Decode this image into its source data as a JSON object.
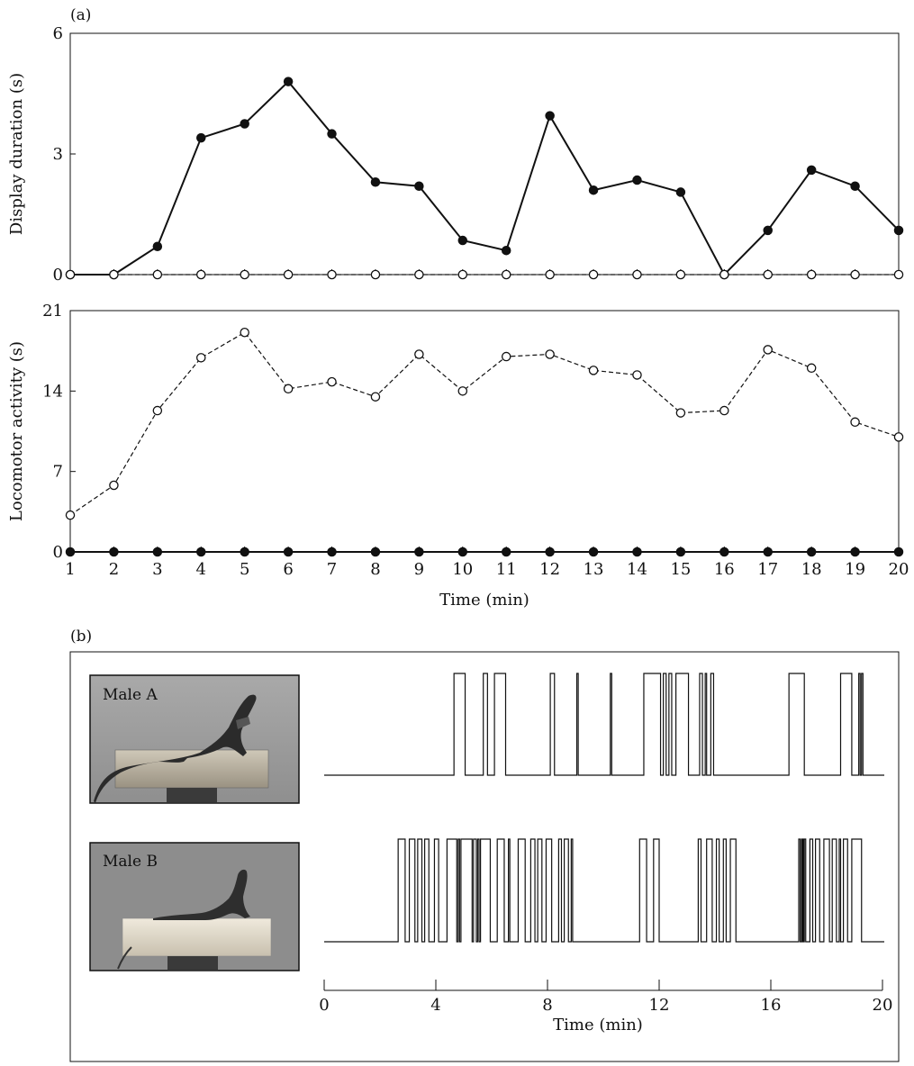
{
  "panel_a_label": "(a)",
  "panel_b_label": "(b)",
  "chart_data": [
    {
      "type": "line",
      "ylabel": "Display duration (s)",
      "xlabel": "",
      "xlim": [
        1,
        20
      ],
      "ylim": [
        0,
        6
      ],
      "yticks": [
        0,
        3,
        6
      ],
      "x": [
        1,
        2,
        3,
        4,
        5,
        6,
        7,
        8,
        9,
        10,
        11,
        12,
        13,
        14,
        15,
        16,
        17,
        18,
        19,
        20
      ],
      "series": [
        {
          "marker": "filled",
          "style": "solid",
          "values": [
            0,
            0,
            0.7,
            3.4,
            3.75,
            4.8,
            3.5,
            2.3,
            2.2,
            0.85,
            0.6,
            3.95,
            2.1,
            2.35,
            2.05,
            0,
            1.1,
            2.6,
            2.2,
            1.1
          ]
        },
        {
          "marker": "open",
          "style": "dashed",
          "values": [
            0,
            0,
            0,
            0,
            0,
            0,
            0,
            0,
            0,
            0,
            0,
            0,
            0,
            0,
            0,
            0,
            0,
            0,
            0,
            0
          ]
        }
      ]
    },
    {
      "type": "line",
      "ylabel": "Locomotor activity (s)",
      "xlabel": "Time (min)",
      "xlim": [
        1,
        20
      ],
      "ylim": [
        0,
        21
      ],
      "yticks": [
        0,
        7,
        14,
        21
      ],
      "xticks": [
        1,
        2,
        3,
        4,
        5,
        6,
        7,
        8,
        9,
        10,
        11,
        12,
        13,
        14,
        15,
        16,
        17,
        18,
        19,
        20
      ],
      "x": [
        1,
        2,
        3,
        4,
        5,
        6,
        7,
        8,
        9,
        10,
        11,
        12,
        13,
        14,
        15,
        16,
        17,
        18,
        19,
        20
      ],
      "series": [
        {
          "marker": "open",
          "style": "dashed",
          "values": [
            3.2,
            5.8,
            12.3,
            16.9,
            19.1,
            14.2,
            14.8,
            13.5,
            17.2,
            14.0,
            17.0,
            17.2,
            15.8,
            15.4,
            12.1,
            12.3,
            17.6,
            16.0,
            11.3,
            10.0
          ]
        },
        {
          "marker": "filled",
          "style": "solid",
          "values": [
            0,
            0,
            0,
            0,
            0,
            0,
            0,
            0,
            0,
            0,
            0,
            0,
            0,
            0,
            0,
            0,
            0,
            0,
            0,
            0
          ]
        }
      ]
    },
    {
      "type": "event-raster",
      "xlabel": "Time (min)",
      "xlim": [
        0,
        20
      ],
      "xticks": [
        0,
        4,
        8,
        12,
        16,
        20
      ],
      "series": [
        {
          "name": "Male A",
          "intervals": [
            [
              4.65,
              5.05
            ],
            [
              5.7,
              5.85
            ],
            [
              6.1,
              6.5
            ],
            [
              8.1,
              8.25
            ],
            [
              9.05,
              9.1
            ],
            [
              10.25,
              10.3
            ],
            [
              11.45,
              12.05
            ],
            [
              12.15,
              12.25
            ],
            [
              12.35,
              12.45
            ],
            [
              12.6,
              13.05
            ],
            [
              13.45,
              13.55
            ],
            [
              13.65,
              13.7
            ],
            [
              13.85,
              13.95
            ],
            [
              16.65,
              17.2
            ],
            [
              18.5,
              18.9
            ],
            [
              19.15,
              19.2
            ],
            [
              19.25,
              19.3
            ]
          ]
        },
        {
          "name": "Male B",
          "intervals": [
            [
              2.65,
              2.9
            ],
            [
              3.05,
              3.25
            ],
            [
              3.35,
              3.5
            ],
            [
              3.6,
              3.75
            ],
            [
              3.95,
              4.1
            ],
            [
              4.4,
              4.75
            ],
            [
              4.8,
              4.85
            ],
            [
              4.9,
              5.3
            ],
            [
              5.35,
              5.45
            ],
            [
              5.5,
              5.55
            ],
            [
              5.6,
              5.95
            ],
            [
              6.2,
              6.45
            ],
            [
              6.6,
              6.65
            ],
            [
              6.95,
              7.2
            ],
            [
              7.4,
              7.55
            ],
            [
              7.65,
              7.8
            ],
            [
              7.95,
              8.15
            ],
            [
              8.4,
              8.5
            ],
            [
              8.6,
              8.75
            ],
            [
              8.85,
              8.9
            ],
            [
              11.3,
              11.55
            ],
            [
              11.8,
              12.0
            ],
            [
              13.4,
              13.5
            ],
            [
              13.7,
              13.9
            ],
            [
              14.05,
              14.15
            ],
            [
              14.3,
              14.4
            ],
            [
              14.55,
              14.75
            ],
            [
              17.0,
              17.05
            ],
            [
              17.1,
              17.12
            ],
            [
              17.15,
              17.18
            ],
            [
              17.2,
              17.25
            ],
            [
              17.4,
              17.5
            ],
            [
              17.6,
              17.75
            ],
            [
              17.9,
              18.1
            ],
            [
              18.2,
              18.35
            ],
            [
              18.45,
              18.5
            ],
            [
              18.6,
              18.75
            ],
            [
              18.9,
              19.25
            ]
          ]
        }
      ]
    }
  ]
}
